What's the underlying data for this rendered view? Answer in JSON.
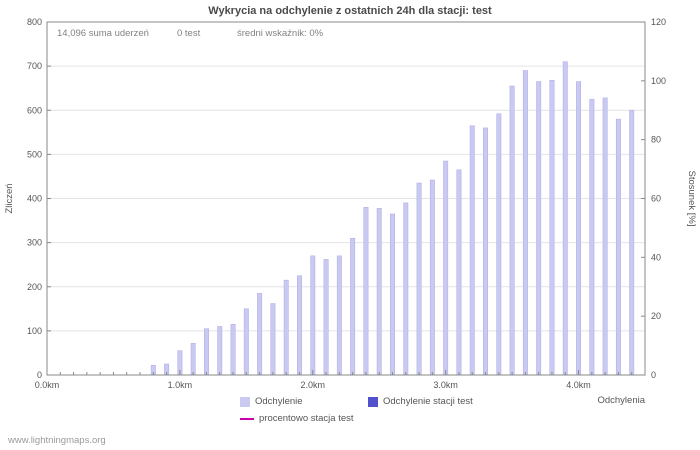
{
  "title": "Wykrycia na odchylenie z ostatnich 24h dla stacji: test",
  "stats": {
    "total_strikes": "14,096 suma uderzeń",
    "station_count": "0 test",
    "mean_ratio": "średni wskaźnik: 0%"
  },
  "footer": "www.lightningmaps.org",
  "chart_data": {
    "type": "bar",
    "title": "Wykrycia na odchylenie z ostatnich 24h dla stacji: test",
    "xlabel": "Odchylenia",
    "ylabel": "Zliczeń",
    "y2label": "Stosunek [%]",
    "ylim": [
      0,
      800
    ],
    "y2lim": [
      0,
      120
    ],
    "x_range_km": [
      0,
      4.5
    ],
    "x_tick_labels": [
      "0.0km",
      "1.0km",
      "2.0km",
      "3.0km",
      "4.0km"
    ],
    "y_ticks": [
      0,
      100,
      200,
      300,
      400,
      500,
      600,
      700,
      800
    ],
    "y2_ticks": [
      0,
      20,
      40,
      60,
      80,
      100,
      120
    ],
    "grid": "horizontal",
    "legend_position": "bottom",
    "series": [
      {
        "name": "Odchylenie",
        "type": "bar",
        "color": "#c9c9f2",
        "axis": "left",
        "x_start_km": 0.8,
        "x_step_km": 0.1,
        "values": [
          22,
          25,
          55,
          72,
          105,
          110,
          115,
          150,
          185,
          162,
          215,
          225,
          270,
          262,
          270,
          310,
          380,
          378,
          365,
          390,
          435,
          442,
          485,
          465,
          565,
          560,
          592,
          655,
          690,
          665,
          668,
          710,
          665,
          625,
          628,
          580,
          600
        ]
      },
      {
        "name": "Odchylenie stacji test",
        "type": "bar",
        "color": "#5252cc",
        "axis": "left",
        "values": []
      },
      {
        "name": "procentowo stacja test",
        "type": "line",
        "color": "#cc00aa",
        "axis": "right",
        "values": []
      }
    ]
  }
}
